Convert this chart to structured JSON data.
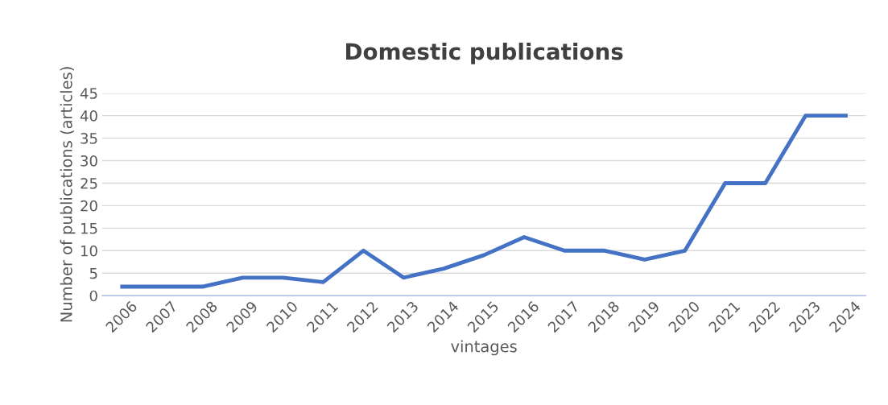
{
  "chart_data": {
    "type": "line",
    "title": "Domestic publications",
    "xlabel": "vintages",
    "ylabel": "Number of publications (articles)",
    "categories": [
      "2006",
      "2007",
      "2008",
      "2009",
      "2010",
      "2011",
      "2012",
      "2013",
      "2014",
      "2015",
      "2016",
      "2017",
      "2018",
      "2019",
      "2020",
      "2021",
      "2022",
      "2023",
      "2024"
    ],
    "series": [
      {
        "color": "#4472c4",
        "values": [
          2,
          2,
          2,
          4,
          4,
          3,
          10,
          4,
          6,
          9,
          13,
          10,
          10,
          8,
          10,
          25,
          25,
          40,
          40
        ]
      }
    ],
    "ylim": [
      0,
      45
    ],
    "yticks": [
      0,
      5,
      10,
      15,
      20,
      25,
      30,
      35,
      40,
      45
    ],
    "grid": "y",
    "marker": "none",
    "line_style": "solid"
  }
}
